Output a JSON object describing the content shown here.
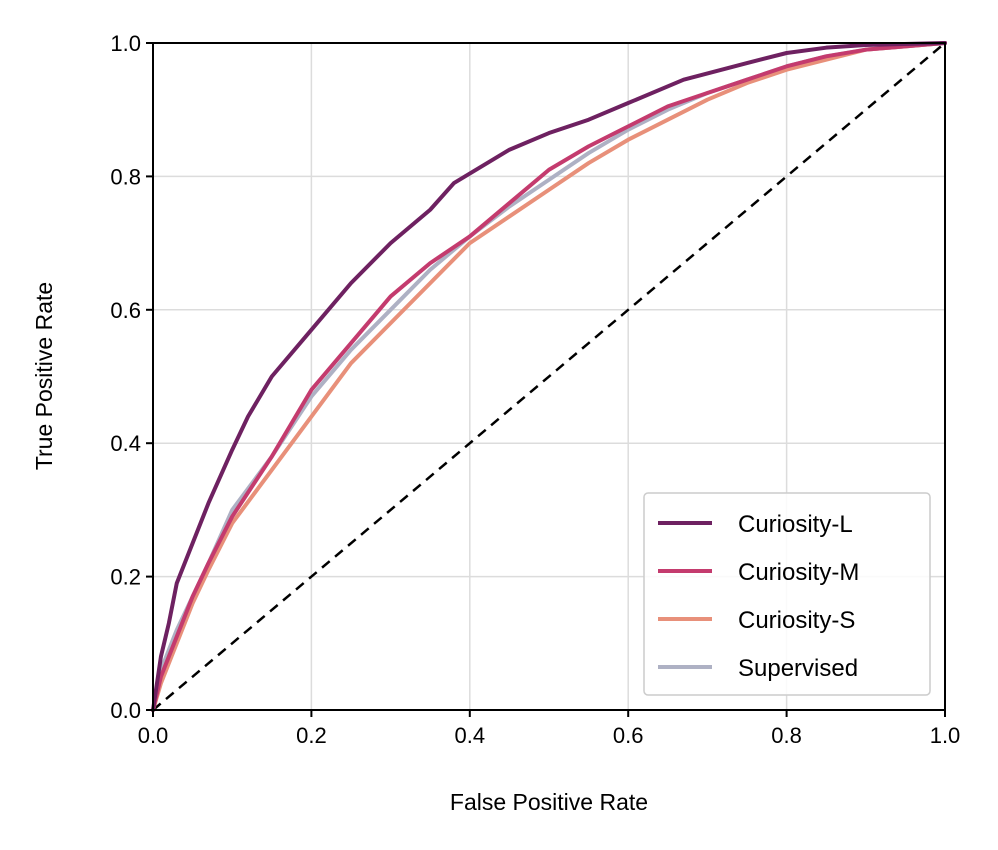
{
  "chart_data": {
    "type": "line",
    "xlabel": "False Positive Rate",
    "ylabel": "True Positive Rate",
    "xlim": [
      0.0,
      1.0
    ],
    "ylim": [
      0.0,
      1.0
    ],
    "xticks": [
      "0.0",
      "0.2",
      "0.4",
      "0.6",
      "0.8",
      "1.0"
    ],
    "yticks": [
      "0.0",
      "0.2",
      "0.4",
      "0.6",
      "0.8",
      "1.0"
    ],
    "grid": true,
    "legend_position": "bottom-right",
    "diagonal": {
      "x": [
        0,
        1
      ],
      "y": [
        0,
        1
      ],
      "style": "dashed",
      "color": "#000000"
    },
    "series": [
      {
        "name": "Curiosity-L",
        "color": "#6e2161",
        "x": [
          0.0,
          0.01,
          0.02,
          0.03,
          0.05,
          0.07,
          0.1,
          0.12,
          0.15,
          0.2,
          0.25,
          0.3,
          0.35,
          0.38,
          0.45,
          0.5,
          0.55,
          0.6,
          0.67,
          0.75,
          0.8,
          0.85,
          0.9,
          1.0
        ],
        "y": [
          0.0,
          0.08,
          0.13,
          0.19,
          0.25,
          0.31,
          0.39,
          0.44,
          0.5,
          0.57,
          0.64,
          0.7,
          0.75,
          0.79,
          0.84,
          0.865,
          0.885,
          0.91,
          0.945,
          0.97,
          0.985,
          0.993,
          0.997,
          1.0
        ]
      },
      {
        "name": "Curiosity-M",
        "color": "#c43b6e",
        "x": [
          0.0,
          0.01,
          0.03,
          0.05,
          0.07,
          0.1,
          0.15,
          0.2,
          0.25,
          0.3,
          0.35,
          0.4,
          0.45,
          0.5,
          0.55,
          0.6,
          0.65,
          0.7,
          0.75,
          0.8,
          0.85,
          0.9,
          1.0
        ],
        "y": [
          0.0,
          0.05,
          0.11,
          0.17,
          0.22,
          0.29,
          0.38,
          0.48,
          0.55,
          0.62,
          0.67,
          0.71,
          0.76,
          0.81,
          0.845,
          0.875,
          0.905,
          0.925,
          0.945,
          0.965,
          0.98,
          0.99,
          1.0
        ]
      },
      {
        "name": "Curiosity-S",
        "color": "#e8907a",
        "x": [
          0.0,
          0.01,
          0.03,
          0.05,
          0.07,
          0.1,
          0.15,
          0.2,
          0.25,
          0.3,
          0.35,
          0.4,
          0.45,
          0.5,
          0.55,
          0.6,
          0.65,
          0.7,
          0.75,
          0.8,
          0.85,
          0.9,
          1.0
        ],
        "y": [
          0.0,
          0.04,
          0.1,
          0.16,
          0.21,
          0.28,
          0.36,
          0.44,
          0.52,
          0.58,
          0.64,
          0.7,
          0.74,
          0.78,
          0.82,
          0.855,
          0.885,
          0.915,
          0.94,
          0.96,
          0.975,
          0.99,
          1.0
        ]
      },
      {
        "name": "Supervised",
        "color": "#aeb1c4",
        "x": [
          0.0,
          0.01,
          0.03,
          0.05,
          0.07,
          0.1,
          0.15,
          0.2,
          0.25,
          0.3,
          0.35,
          0.4,
          0.45,
          0.5,
          0.55,
          0.6,
          0.65,
          0.7,
          0.75,
          0.8,
          0.85,
          0.9,
          1.0
        ],
        "y": [
          0.0,
          0.06,
          0.12,
          0.17,
          0.22,
          0.3,
          0.38,
          0.47,
          0.54,
          0.6,
          0.66,
          0.71,
          0.755,
          0.795,
          0.835,
          0.87,
          0.9,
          0.925,
          0.945,
          0.965,
          0.98,
          0.99,
          1.0
        ]
      }
    ]
  }
}
